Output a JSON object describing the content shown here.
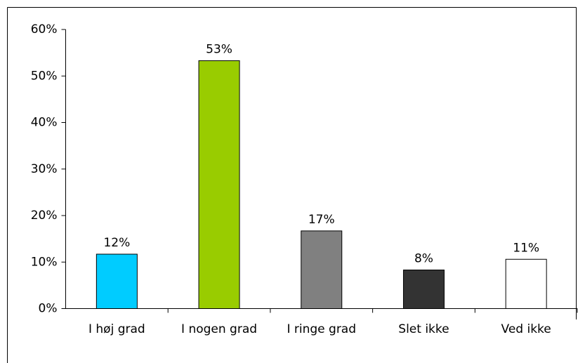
{
  "chart_data": {
    "type": "bar",
    "categories": [
      "I høj grad",
      "I nogen grad",
      "I ringe grad",
      "Slet ikke",
      "Ved ikke"
    ],
    "values": [
      11.7,
      53.3,
      16.7,
      8.3,
      10.6
    ],
    "value_labels": [
      "12%",
      "53%",
      "17%",
      "8%",
      "11%"
    ],
    "colors": [
      "#00ccff",
      "#99cc00",
      "#808080",
      "#333333",
      "#ffffff"
    ],
    "ylim": [
      0,
      60
    ],
    "yticks": [
      {
        "value": 0,
        "label": "0%"
      },
      {
        "value": 10,
        "label": "10%"
      },
      {
        "value": 20,
        "label": "20%"
      },
      {
        "value": 30,
        "label": "30%"
      },
      {
        "value": 40,
        "label": "40%"
      },
      {
        "value": 50,
        "label": "50%"
      },
      {
        "value": 60,
        "label": "60%"
      }
    ],
    "grid": false
  }
}
